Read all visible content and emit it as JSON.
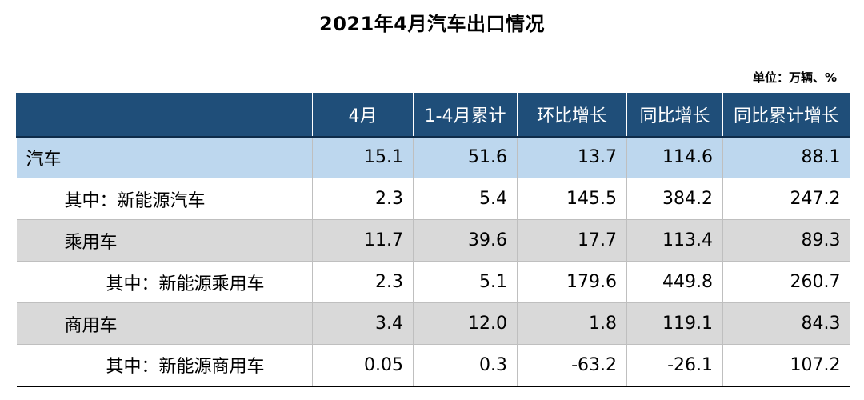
{
  "title": "2021年4月汽车出口情况",
  "unit": "单位：万辆、%",
  "table": {
    "headers": [
      "",
      "4月",
      "1-4月累计",
      "环比增长",
      "同比增长",
      "同比累计增长"
    ],
    "rows": [
      {
        "label": "汽车",
        "values": [
          "15.1",
          "51.6",
          "13.7",
          "114.6",
          "88.1"
        ]
      },
      {
        "label": "其中：新能源汽车",
        "values": [
          "2.3",
          "5.4",
          "145.5",
          "384.2",
          "247.2"
        ]
      },
      {
        "label": "乘用车",
        "values": [
          "11.7",
          "39.6",
          "17.7",
          "113.4",
          "89.3"
        ]
      },
      {
        "label": "其中：新能源乘用车",
        "values": [
          "2.3",
          "5.1",
          "179.6",
          "449.8",
          "260.7"
        ]
      },
      {
        "label": "商用车",
        "values": [
          "3.4",
          "12.0",
          "1.8",
          "119.1",
          "84.3"
        ]
      },
      {
        "label": "其中：新能源商用车",
        "values": [
          "0.05",
          "0.3",
          "-63.2",
          "-26.1",
          "107.2"
        ]
      }
    ]
  },
  "colors": {
    "header_bg": "#1f4e79",
    "total_row_bg": "#bdd7ee",
    "category_row_bg": "#d9d9d9",
    "nev_row_bg": "#ffffff"
  }
}
